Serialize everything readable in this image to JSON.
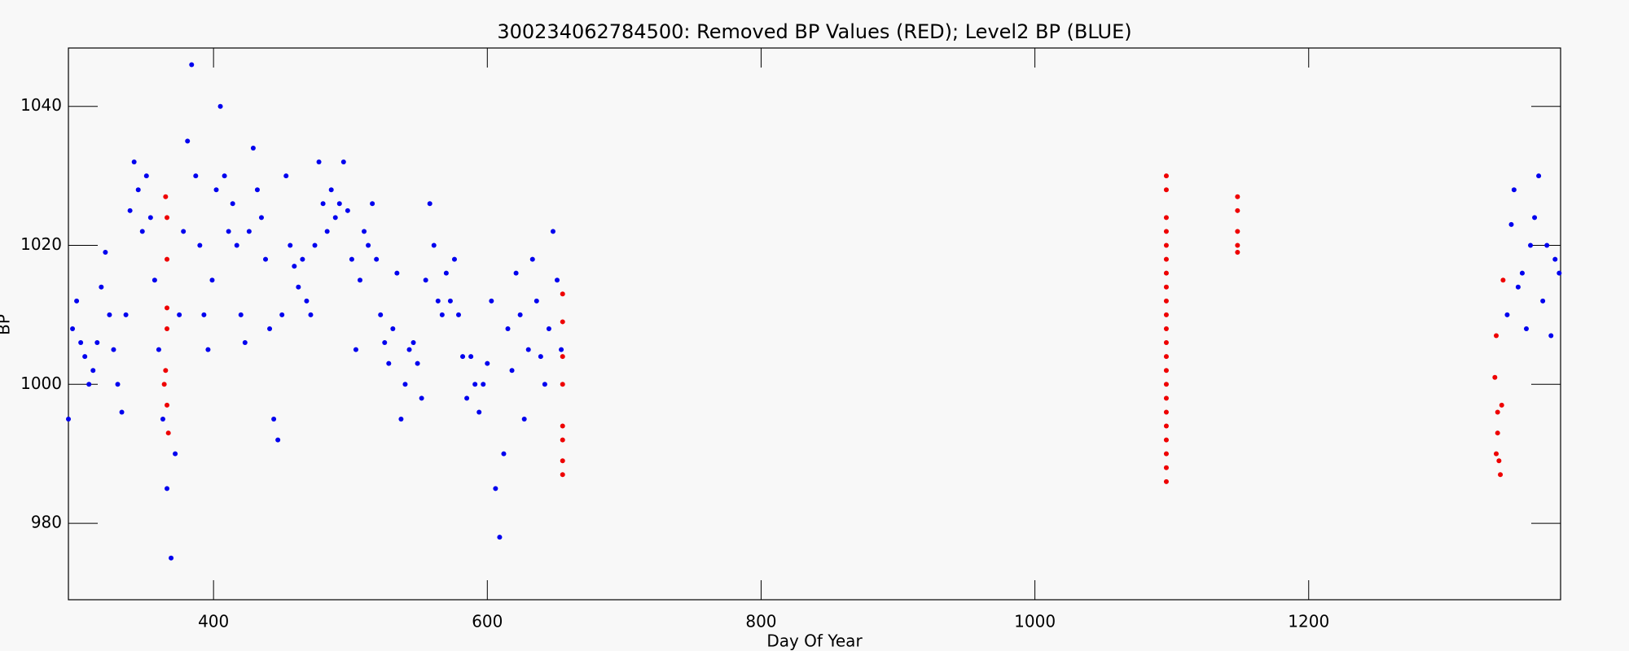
{
  "chart_data": {
    "type": "scatter",
    "title": "300234062784500: Removed BP Values (RED); Level2 BP (BLUE)",
    "x_label": "Day Of Year",
    "y_label": "BP",
    "xlim": [
      294,
      1384
    ],
    "ylim": [
      969,
      1048.4
    ],
    "xticks": [
      400,
      600,
      800,
      1000,
      1200
    ],
    "yticks": [
      980,
      1000,
      1020,
      1040
    ],
    "series": [
      {
        "color": "#0000ee",
        "x": [
          294,
          297,
          300,
          303,
          306,
          309,
          312,
          315,
          318,
          321,
          324,
          327,
          330,
          333,
          336,
          339,
          342,
          345,
          348,
          351,
          354,
          357,
          360,
          363,
          366,
          369,
          372,
          375,
          378,
          381,
          384,
          387,
          390,
          393,
          396,
          399,
          402,
          405,
          408,
          411,
          414,
          417,
          420,
          423,
          426,
          429,
          432,
          435,
          438,
          441,
          444,
          447,
          450,
          453,
          456,
          459,
          462,
          465,
          468,
          471,
          474,
          477,
          480,
          483,
          486,
          489,
          492,
          495,
          498,
          501,
          504,
          507,
          510,
          513,
          516,
          519,
          522,
          525,
          528,
          531,
          534,
          537,
          540,
          543,
          546,
          549,
          552,
          555,
          558,
          561,
          564,
          567,
          570,
          573,
          576,
          579,
          582,
          585,
          588,
          591,
          594,
          597,
          600,
          603,
          606,
          609,
          612,
          615,
          618,
          621,
          624,
          627,
          630,
          633,
          636,
          639,
          642,
          645,
          648,
          651,
          654,
          1345,
          1348,
          1350,
          1353,
          1356,
          1359,
          1362,
          1365,
          1368,
          1371,
          1374,
          1377,
          1380,
          1383
        ],
        "values": [
          995,
          1008,
          1012,
          1006,
          1004,
          1000,
          1002,
          1006,
          1014,
          1019,
          1010,
          1005,
          1000,
          996,
          1010,
          1025,
          1032,
          1028,
          1022,
          1030,
          1024,
          1015,
          1005,
          995,
          985,
          975,
          990,
          1010,
          1022,
          1035,
          1046,
          1030,
          1020,
          1010,
          1005,
          1015,
          1028,
          1040,
          1030,
          1022,
          1026,
          1020,
          1010,
          1006,
          1022,
          1034,
          1028,
          1024,
          1018,
          1008,
          995,
          992,
          1010,
          1030,
          1020,
          1017,
          1014,
          1018,
          1012,
          1010,
          1020,
          1032,
          1026,
          1022,
          1028,
          1024,
          1026,
          1032,
          1025,
          1018,
          1005,
          1015,
          1022,
          1020,
          1026,
          1018,
          1010,
          1006,
          1003,
          1008,
          1016,
          995,
          1000,
          1005,
          1006,
          1003,
          998,
          1015,
          1026,
          1020,
          1012,
          1010,
          1016,
          1012,
          1018,
          1010,
          1004,
          998,
          1004,
          1000,
          996,
          1000,
          1003,
          1012,
          985,
          978,
          990,
          1008,
          1002,
          1016,
          1010,
          995,
          1005,
          1018,
          1012,
          1004,
          1000,
          1008,
          1022,
          1015,
          1005,
          1010,
          1023,
          1028,
          1014,
          1016,
          1008,
          1020,
          1024,
          1030,
          1012,
          1020,
          1007,
          1018,
          1016
        ]
      },
      {
        "color": "#ee0000",
        "x": [
          365,
          366,
          366,
          366,
          366,
          365,
          364,
          366,
          367,
          655,
          655,
          655,
          655,
          655,
          655,
          655,
          655,
          1096,
          1096,
          1096,
          1096,
          1096,
          1096,
          1096,
          1096,
          1096,
          1096,
          1096,
          1096,
          1096,
          1096,
          1096,
          1096,
          1096,
          1096,
          1096,
          1096,
          1096,
          1096,
          1148,
          1148,
          1148,
          1148,
          1148,
          1337,
          1336,
          1338,
          1338,
          1337,
          1339,
          1341,
          1340,
          1342
        ],
        "values": [
          1027,
          1024,
          1018,
          1011,
          1008,
          1002,
          1000,
          997,
          993,
          1013,
          1009,
          1004,
          1000,
          994,
          992,
          989,
          987,
          1030,
          1028,
          1024,
          1022,
          1020,
          1018,
          1016,
          1014,
          1012,
          1010,
          1008,
          1006,
          1004,
          1002,
          1000,
          998,
          996,
          994,
          992,
          990,
          988,
          986,
          1027,
          1025,
          1022,
          1020,
          1019,
          1007,
          1001,
          996,
          993,
          990,
          989,
          997,
          987,
          1015
        ]
      }
    ]
  }
}
